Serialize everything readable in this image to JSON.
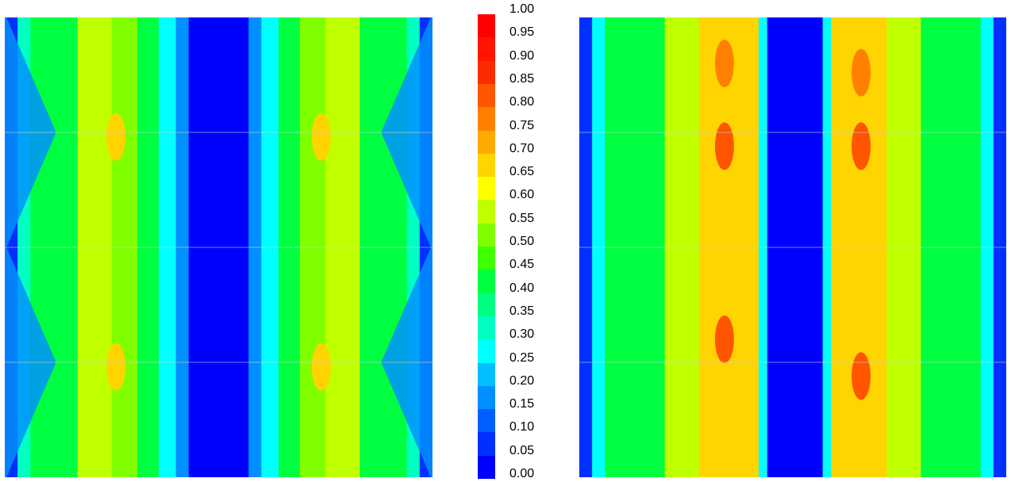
{
  "chart_data": {
    "type": "heatmap",
    "title": "",
    "colorbar": {
      "range": [
        0.0,
        1.0
      ],
      "step": 0.05,
      "tick_labels": [
        "1.00",
        "0.95",
        "0.90",
        "0.85",
        "0.80",
        "0.75",
        "0.70",
        "0.65",
        "0.60",
        "0.55",
        "0.50",
        "0.45",
        "0.40",
        "0.35",
        "0.30",
        "0.25",
        "0.20",
        "0.15",
        "0.10",
        "0.05",
        "0.00"
      ],
      "colors": [
        "#0000ff",
        "#0030ff",
        "#0060ff",
        "#0090ff",
        "#00c0ff",
        "#00ffff",
        "#00ffc0",
        "#00ff80",
        "#00ff40",
        "#40ff00",
        "#80ff00",
        "#c0ff00",
        "#ffff00",
        "#ffd400",
        "#ffaa00",
        "#ff8000",
        "#ff5500",
        "#ff2b00",
        "#ff1500",
        "#ff0000"
      ]
    },
    "panels": [
      {
        "name": "",
        "bands": [
          {
            "from": 0.0,
            "to": 0.03,
            "value": 0.05
          },
          {
            "from": 0.03,
            "to": 0.06,
            "value": 0.35
          },
          {
            "from": 0.06,
            "to": 0.17,
            "value": 0.42
          },
          {
            "from": 0.17,
            "to": 0.25,
            "value": 0.55
          },
          {
            "from": 0.25,
            "to": 0.31,
            "value": 0.5
          },
          {
            "from": 0.31,
            "to": 0.36,
            "value": 0.4
          },
          {
            "from": 0.36,
            "to": 0.4,
            "value": 0.28
          },
          {
            "from": 0.4,
            "to": 0.43,
            "value": 0.18
          },
          {
            "from": 0.43,
            "to": 0.57,
            "value": 0.0
          },
          {
            "from": 0.57,
            "to": 0.6,
            "value": 0.18
          },
          {
            "from": 0.6,
            "to": 0.64,
            "value": 0.28
          },
          {
            "from": 0.64,
            "to": 0.69,
            "value": 0.4
          },
          {
            "from": 0.69,
            "to": 0.75,
            "value": 0.5
          },
          {
            "from": 0.75,
            "to": 0.83,
            "value": 0.55
          },
          {
            "from": 0.83,
            "to": 0.94,
            "value": 0.42
          },
          {
            "from": 0.94,
            "to": 0.97,
            "value": 0.35
          },
          {
            "from": 0.97,
            "to": 1.0,
            "value": 0.05
          }
        ],
        "side_blue_rows": [
          0.25,
          0.75
        ],
        "hotspots": [
          {
            "x": 0.26,
            "y": 0.26,
            "value": 0.7
          },
          {
            "x": 0.74,
            "y": 0.26,
            "value": 0.65
          },
          {
            "x": 0.26,
            "y": 0.76,
            "value": 0.7
          },
          {
            "x": 0.74,
            "y": 0.76,
            "value": 0.65
          }
        ]
      },
      {
        "name": "",
        "bands": [
          {
            "from": 0.0,
            "to": 0.03,
            "value": 0.05
          },
          {
            "from": 0.03,
            "to": 0.06,
            "value": 0.3
          },
          {
            "from": 0.06,
            "to": 0.2,
            "value": 0.42
          },
          {
            "from": 0.2,
            "to": 0.28,
            "value": 0.55
          },
          {
            "from": 0.28,
            "to": 0.42,
            "value": 0.65
          },
          {
            "from": 0.42,
            "to": 0.44,
            "value": 0.3
          },
          {
            "from": 0.44,
            "to": 0.57,
            "value": 0.0
          },
          {
            "from": 0.57,
            "to": 0.59,
            "value": 0.3
          },
          {
            "from": 0.59,
            "to": 0.72,
            "value": 0.65
          },
          {
            "from": 0.72,
            "to": 0.8,
            "value": 0.55
          },
          {
            "from": 0.8,
            "to": 0.94,
            "value": 0.42
          },
          {
            "from": 0.94,
            "to": 0.97,
            "value": 0.3
          },
          {
            "from": 0.97,
            "to": 1.0,
            "value": 0.05
          }
        ],
        "side_blue_rows": [],
        "hotspots": [
          {
            "x": 0.34,
            "y": 0.28,
            "value": 0.8
          },
          {
            "x": 0.66,
            "y": 0.28,
            "value": 0.8
          },
          {
            "x": 0.34,
            "y": 0.7,
            "value": 0.8
          },
          {
            "x": 0.66,
            "y": 0.78,
            "value": 0.8
          },
          {
            "x": 0.34,
            "y": 0.1,
            "value": 0.75
          },
          {
            "x": 0.66,
            "y": 0.12,
            "value": 0.75
          }
        ]
      }
    ]
  }
}
